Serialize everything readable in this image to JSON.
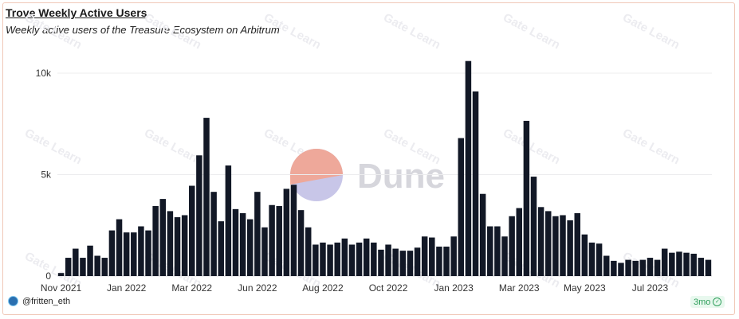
{
  "chart_data": {
    "type": "bar",
    "title": "Trove Weekly Active Users",
    "subtitle": "Weekly active users of the Treasure Ecosystem on Arbitrum",
    "xlabel": "",
    "ylabel": "",
    "ylim": [
      0,
      10000
    ],
    "y_ticks": [
      "0",
      "5k",
      "10k"
    ],
    "y_tick_values": [
      0,
      5000,
      10000
    ],
    "x_ticks": [
      "Nov 2021",
      "Jan 2022",
      "Mar 2022",
      "Jun 2022",
      "Aug 2022",
      "Oct 2022",
      "Jan 2023",
      "Mar 2023",
      "May 2023",
      "Jul 2023"
    ],
    "x_tick_weeks": [
      0,
      9,
      18,
      27,
      36,
      45,
      54,
      63,
      72,
      81
    ],
    "grid": "horizontal",
    "bar_color": "#121826",
    "values": [
      150,
      900,
      1350,
      900,
      1500,
      1000,
      900,
      2250,
      2800,
      2150,
      2150,
      2450,
      2250,
      3450,
      3800,
      3200,
      2900,
      3000,
      4450,
      5950,
      7800,
      4150,
      2700,
      5450,
      3300,
      3100,
      2800,
      4150,
      2400,
      3500,
      3450,
      4300,
      4500,
      3250,
      2400,
      1550,
      1650,
      1550,
      1650,
      1850,
      1550,
      1650,
      1850,
      1650,
      1300,
      1550,
      1350,
      1250,
      1250,
      1400,
      1950,
      1900,
      1450,
      1450,
      1950,
      6800,
      10600,
      9100,
      4050,
      2450,
      2450,
      1950,
      2950,
      3350,
      7650,
      4900,
      3400,
      3200,
      2950,
      3000,
      2750,
      3100,
      2050,
      1650,
      1600,
      1000,
      750,
      650,
      800,
      750,
      800,
      900,
      800,
      1350,
      1150,
      1200,
      1150,
      1100,
      900,
      800
    ]
  },
  "watermark": {
    "brand": "Dune",
    "repeat_text": "Gate Learn"
  },
  "footer": {
    "author": "@fritten_eth",
    "freshness": "3mo"
  },
  "colors": {
    "accent_green": "#2e9e5a",
    "dune_orange": "#f4a28c",
    "dune_blue": "#c8c6e8"
  }
}
